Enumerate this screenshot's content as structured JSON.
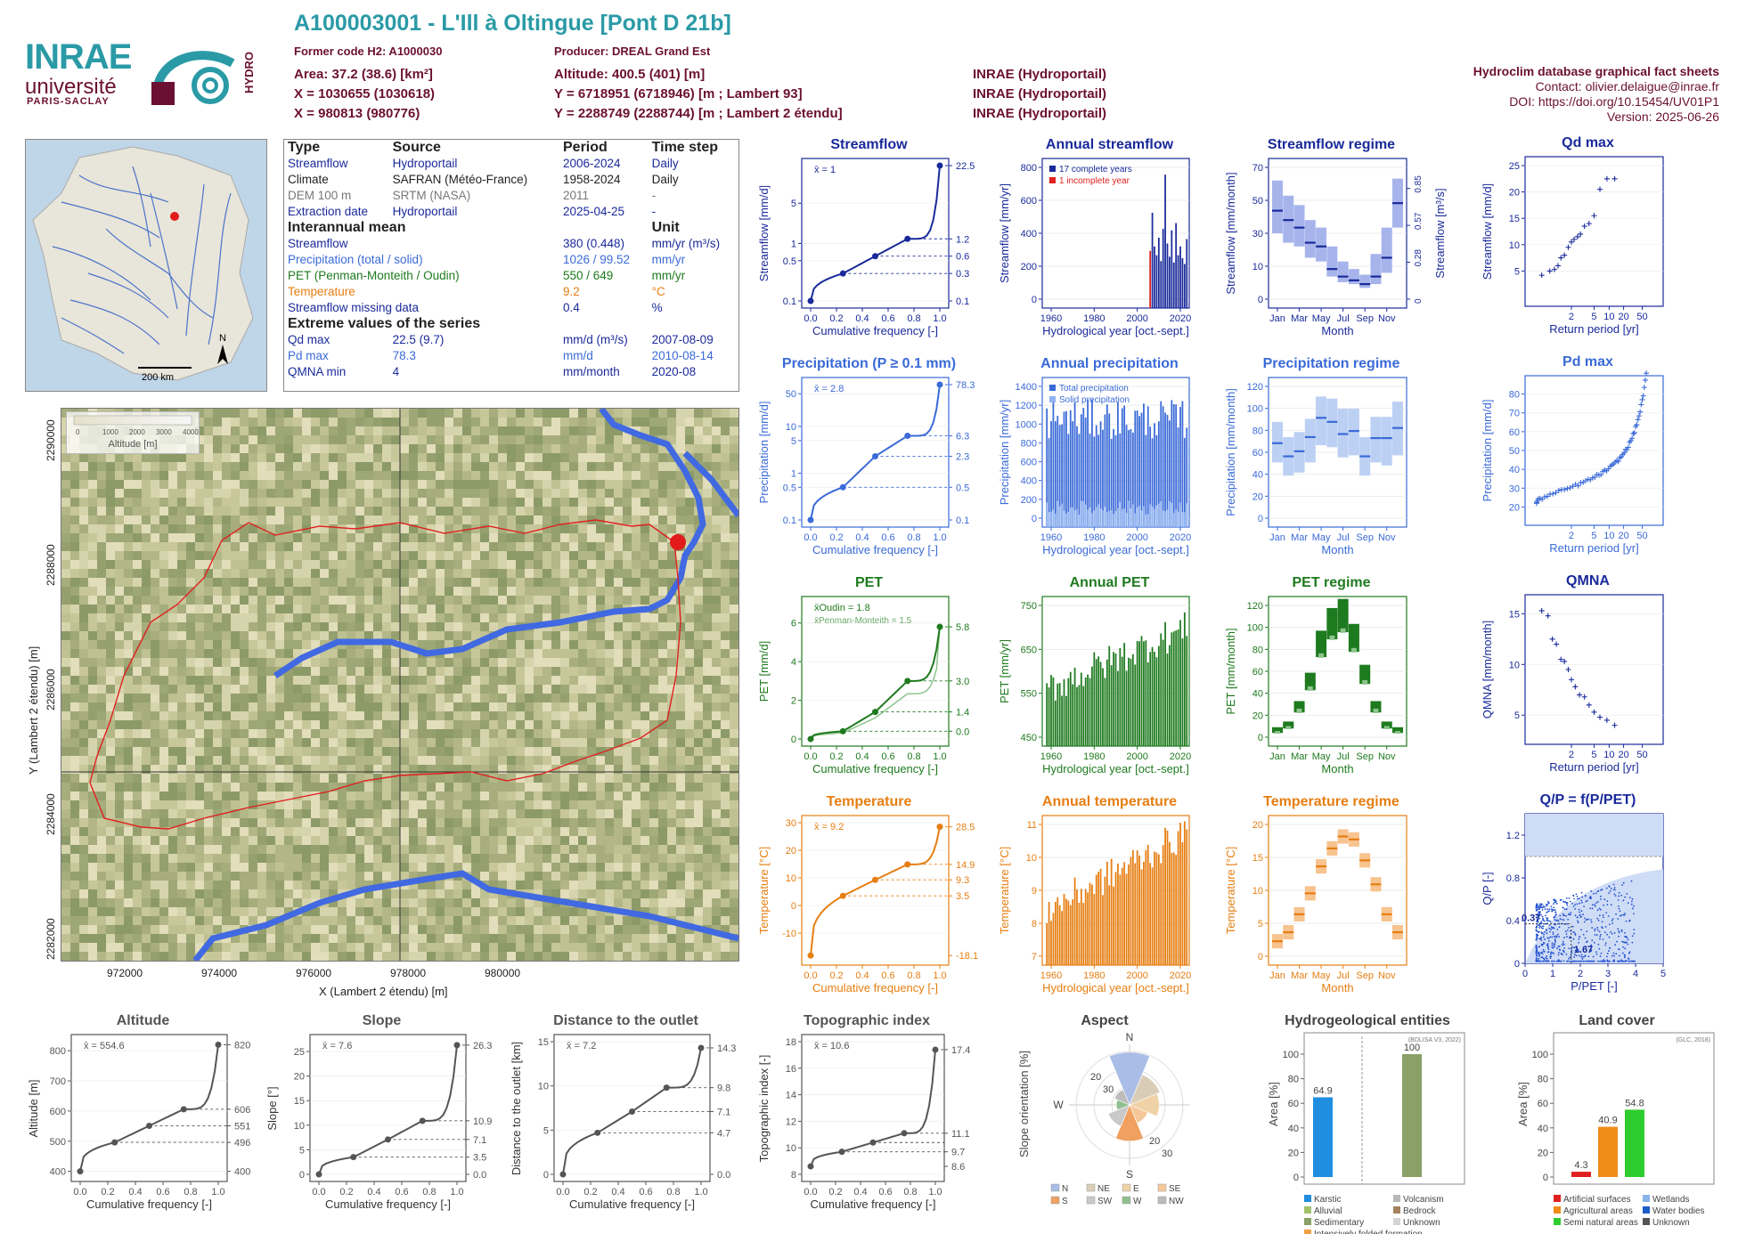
{
  "header": {
    "title": "A100003001 - L'Ill à Oltingue [Pont D 21b]",
    "former_code": "Former code H2: A1000030",
    "producer": "Producer: DREAL Grand Est",
    "area": "Area: 37.2 (38.6) [km²]",
    "altitude": "Altitude: 400.5 (401) [m]",
    "x93": "X = 1030655 (1030618)",
    "y93": "Y = 6718951 (6718946) [m ; Lambert 93]",
    "x2": "X = 980813 (980776)",
    "y2": "Y = 2288749 (2288744) [m ; Lambert 2 étendu]",
    "src1": "INRAE (Hydroportail)",
    "src2": "INRAE (Hydroportail)",
    "src3": "INRAE (Hydroportail)",
    "db": "Hydroclim database graphical fact sheets",
    "contact": "Contact: olivier.delaigue@inrae.fr",
    "doi": "DOI: https://doi.org/10.15454/UV01P1",
    "version": "Version: 2025-06-26"
  },
  "logos": {
    "inrae": "INRAE",
    "univ": "université",
    "ps": "PARIS-SACLAY",
    "hydro": "HYDRO"
  },
  "info": {
    "h_type": "Type",
    "h_source": "Source",
    "h_period": "Period",
    "h_step": "Time step",
    "rows": [
      {
        "t": "Streamflow",
        "s": "Hydroportail",
        "p": "2006-2024",
        "d": "Daily",
        "c": "#1a2a9a"
      },
      {
        "t": "Climate",
        "s": "SAFRAN (Météo-France)",
        "p": "1958-2024",
        "d": "Daily",
        "c": "#222222"
      },
      {
        "t": "DEM 100 m",
        "s": "SRTM (NASA)",
        "p": "2011",
        "d": "-",
        "c": "#777777"
      },
      {
        "t": "Extraction date",
        "s": "Hydroportail",
        "p": "2025-04-25",
        "d": "-",
        "c": "#1a2a9a"
      }
    ],
    "h_mean": "Interannual mean",
    "h_unit": "Unit",
    "means": [
      {
        "n": "Streamflow",
        "v": "380 (0.448)",
        "u": "mm/yr (m³/s)",
        "c": "#1a2a9a"
      },
      {
        "n": "Precipitation (total / solid)",
        "v": "1026 / 99.52",
        "u": "mm/yr",
        "c": "#3a6ad8"
      },
      {
        "n": "PET (Penman-Monteith / Oudin)",
        "v": "550 / 649",
        "u": "mm/yr",
        "c": "#1e7a1e"
      },
      {
        "n": "Temperature",
        "v": "9.2",
        "u": "°C",
        "c": "#e67e12"
      },
      {
        "n": "Streamflow missing data",
        "v": "0.4",
        "u": "%",
        "c": "#1a2a9a"
      }
    ],
    "h_extreme": "Extreme values of the series",
    "extremes": [
      {
        "n": "Qd max",
        "v": "22.5 (9.7)",
        "u": "mm/d (m³/s)",
        "d": "2007-08-09",
        "c": "#1a2a9a"
      },
      {
        "n": "Pd max",
        "v": "78.3",
        "u": "mm/d",
        "d": "2010-08-14",
        "c": "#3a6ad8"
      },
      {
        "n": "QMNA min",
        "v": "4",
        "u": "mm/month",
        "d": "2020-08",
        "c": "#1a2a9a"
      }
    ]
  },
  "maps": {
    "scale": "200 km",
    "north": "N",
    "legend_title": "Altitude [m]",
    "legend_ticks": [
      "0",
      "1000",
      "2000",
      "3000",
      "4000"
    ],
    "xlabel": "X (Lambert 2 étendu) [m]",
    "ylabel": "Y (Lambert 2 étendu) [m]",
    "xticks": [
      "972000",
      "974000",
      "976000",
      "978000",
      "980000"
    ],
    "yticks": [
      "2282000",
      "2284000",
      "2286000",
      "2288000",
      "2290000"
    ]
  },
  "colors": {
    "flow": "#1a2a9a",
    "precip": "#3a6ad8",
    "pet": "#1e7a1e",
    "temp": "#e67e12",
    "grey": "#555555"
  },
  "chart_data": [
    {
      "id": "streamflow",
      "type": "line",
      "title": "Streamflow",
      "xlabel": "Cumulative frequency [-]",
      "ylabel": "Streamflow [mm/d]",
      "mean_label": "x̄ = 1",
      "y_scale": "log",
      "x": [
        0,
        0.25,
        0.5,
        0.75,
        1
      ],
      "y": [
        0.1,
        0.3,
        0.6,
        1.2,
        22.5
      ],
      "right_ticks": [
        "22.5",
        "1.2",
        "0.6",
        "0.3",
        "0.1"
      ],
      "yticks": [
        "0.1",
        "0.5",
        "1",
        "5"
      ]
    },
    {
      "id": "annual_streamflow",
      "type": "bar",
      "title": "Annual streamflow",
      "xlabel": "Hydrological year [oct.-sept.]",
      "ylabel": "Streamflow [mm/yr]",
      "legend": [
        "17 complete years",
        "1 incomplete year"
      ],
      "x": [
        2006,
        2007,
        2008,
        2009,
        2010,
        2011,
        2012,
        2013,
        2014,
        2015,
        2016,
        2017,
        2018,
        2019,
        2020,
        2021,
        2022,
        2023
      ],
      "y": [
        330,
        590,
        360,
        300,
        420,
        260,
        480,
        850,
        380,
        290,
        470,
        250,
        520,
        300,
        360,
        280,
        240,
        410
      ],
      "ylim": [
        0,
        900
      ],
      "yticks": [
        "0",
        "200",
        "400",
        "600",
        "800"
      ],
      "xticks": [
        "1960",
        "1980",
        "2000",
        "2020"
      ]
    },
    {
      "id": "streamflow_regime",
      "type": "box",
      "title": "Streamflow regime",
      "xlabel": "Month",
      "ylabel": "Streamflow [mm/month]",
      "right_ylabel": "Streamflow [m³/s]",
      "categories": [
        "Jan",
        "Feb",
        "Mar",
        "Apr",
        "May",
        "Jun",
        "Jul",
        "Aug",
        "Sep",
        "Oct",
        "Nov",
        "Dec"
      ],
      "median": [
        47,
        42,
        38,
        30,
        28,
        16,
        12,
        10,
        8,
        12,
        22,
        51
      ],
      "q1": [
        35,
        30,
        28,
        22,
        20,
        12,
        9,
        8,
        6,
        8,
        14,
        38
      ],
      "q3": [
        63,
        55,
        50,
        42,
        38,
        28,
        20,
        16,
        13,
        24,
        38,
        64
      ],
      "ylim": [
        0,
        70
      ],
      "yticks": [
        "0",
        "10",
        "30",
        "50",
        "70"
      ],
      "right_ticks": [
        "0",
        "0.28",
        "0.57",
        "0.85"
      ],
      "xticks": [
        "Jan",
        "Mar",
        "May",
        "Jul",
        "Sep",
        "Nov"
      ]
    },
    {
      "id": "qd_max",
      "type": "scatter",
      "title": "Qd max",
      "xlabel": "Return period [yr]",
      "ylabel": "Streamflow [mm/d]",
      "x": [
        1.05,
        1.15,
        1.25,
        1.35,
        1.45,
        1.6,
        1.8,
        2.0,
        2.2,
        2.5,
        2.8,
        3.3,
        4,
        5,
        6.5,
        9,
        13
      ],
      "y": [
        4.2,
        5,
        5.3,
        6,
        7.5,
        8,
        9.5,
        10.5,
        11,
        11.5,
        12,
        13.5,
        14,
        15.5,
        20.5,
        22.5,
        22.5
      ],
      "ylim": [
        0,
        25
      ],
      "yticks": [
        "5",
        "10",
        "15",
        "20",
        "25"
      ],
      "xticks": [
        "2",
        "5",
        "10",
        "20",
        "50"
      ]
    },
    {
      "id": "precipitation",
      "type": "line",
      "title": "Precipitation (P ≥ 0.1 mm)",
      "xlabel": "Cumulative frequency [-]",
      "ylabel": "Precipitation [mm/d]",
      "mean_label": "x̄ = 2.8",
      "y_scale": "log",
      "x": [
        0,
        0.25,
        0.5,
        0.75,
        1
      ],
      "y": [
        0.1,
        0.5,
        2.3,
        6.3,
        78.3
      ],
      "right_ticks": [
        "78.3",
        "6.3",
        "2.3",
        "0.5",
        "0.1"
      ],
      "yticks": [
        "0.1",
        "0.5",
        "1",
        "5",
        "10",
        "50"
      ]
    },
    {
      "id": "annual_precipitation",
      "type": "bar",
      "title": "Annual precipitation",
      "xlabel": "Hydrological year [oct.-sept.]",
      "ylabel": "Precipitation [mm/yr]",
      "legend": [
        "Total precipitation",
        "Solid precipitation"
      ],
      "ylim": [
        0,
        1500
      ],
      "yticks": [
        "0",
        "200",
        "400",
        "600",
        "800",
        "1000",
        "1200",
        "1400"
      ],
      "xticks": [
        "1960",
        "1980",
        "2000",
        "2020"
      ]
    },
    {
      "id": "precipitation_regime",
      "type": "box",
      "title": "Precipitation regime",
      "xlabel": "Month",
      "ylabel": "Precipitation [mm/month]",
      "categories": [
        "Jan",
        "Feb",
        "Mar",
        "Apr",
        "May",
        "Jun",
        "Jul",
        "Aug",
        "Sep",
        "Oct",
        "Nov",
        "Dec"
      ],
      "median": [
        74,
        61,
        66,
        80,
        99,
        95,
        83,
        86,
        61,
        79,
        79,
        89
      ],
      "q1": [
        55,
        42,
        45,
        55,
        72,
        70,
        60,
        62,
        42,
        55,
        52,
        62
      ],
      "q3": [
        95,
        80,
        85,
        98,
        120,
        118,
        108,
        108,
        80,
        100,
        100,
        115
      ],
      "ylim": [
        0,
        130
      ],
      "yticks": [
        "0",
        "20",
        "40",
        "60",
        "80",
        "100",
        "120"
      ],
      "xticks": [
        "Jan",
        "Mar",
        "May",
        "Jul",
        "Sep",
        "Nov"
      ]
    },
    {
      "id": "pd_max",
      "type": "scatter",
      "title": "Pd max",
      "xlabel": "Return period [yr]",
      "ylabel": "Precipitation [mm/d]",
      "ylim": [
        15,
        85
      ],
      "yticks": [
        "20",
        "30",
        "40",
        "50",
        "60",
        "70",
        "80"
      ],
      "xticks": [
        "2",
        "5",
        "10",
        "20",
        "50"
      ]
    },
    {
      "id": "pet",
      "type": "line",
      "title": "PET",
      "xlabel": "Cumulative frequency [-]",
      "ylabel": "PET [mm/d]",
      "mean_label": "x̄Oudin = 1.8",
      "mean_label2": "x̄Penman-Monteith = 1.5",
      "x": [
        0,
        0.25,
        0.5,
        0.75,
        1
      ],
      "y": [
        0,
        0.4,
        1.4,
        3.0,
        5.8
      ],
      "right_ticks": [
        "5.8",
        "3.0",
        "1.4",
        "0.0"
      ],
      "yticks": [
        "0",
        "2",
        "4",
        "6"
      ],
      "ylim": [
        0,
        7
      ]
    },
    {
      "id": "annual_pet",
      "type": "bar",
      "title": "Annual PET",
      "xlabel": "Hydrological year [oct.-sept.]",
      "ylabel": "PET [mm/yr]",
      "ylim": [
        420,
        760
      ],
      "yticks": [
        "450",
        "550",
        "650",
        "750"
      ],
      "xticks": [
        "1960",
        "1980",
        "2000",
        "2020"
      ]
    },
    {
      "id": "pet_regime",
      "type": "box",
      "title": "PET regime",
      "xlabel": "Month",
      "ylabel": "PET [mm/month]",
      "categories": [
        "Jan",
        "Feb",
        "Mar",
        "Apr",
        "May",
        "Jun",
        "Jul",
        "Aug",
        "Sep",
        "Oct",
        "Nov",
        "Dec"
      ],
      "median": [
        7,
        12,
        30,
        55,
        92,
        112,
        120,
        98,
        62,
        30,
        12,
        7
      ],
      "ylim": [
        0,
        130
      ],
      "yticks": [
        "0",
        "20",
        "40",
        "60",
        "80",
        "100",
        "120"
      ],
      "xticks": [
        "Jan",
        "Mar",
        "May",
        "Jul",
        "Sep",
        "Nov"
      ]
    },
    {
      "id": "qmna",
      "type": "scatter",
      "title": "QMNA",
      "xlabel": "Return period [yr]",
      "ylabel": "QMNA [mm/month]",
      "x": [
        1.05,
        1.12,
        1.2,
        1.3,
        1.45,
        1.6,
        1.8,
        2.0,
        2.3,
        2.7,
        3.3,
        4,
        5,
        6.5,
        9,
        13
      ],
      "y": [
        15.3,
        14.8,
        12.5,
        12,
        10.5,
        10.3,
        9.5,
        8.5,
        7.8,
        7,
        6.8,
        6,
        5.3,
        4.8,
        4.5,
        4
      ],
      "ylim": [
        3,
        16
      ],
      "yticks": [
        "5",
        "10",
        "15"
      ],
      "xticks": [
        "2",
        "5",
        "10",
        "20",
        "50"
      ]
    },
    {
      "id": "temperature",
      "type": "line",
      "title": "Temperature",
      "xlabel": "Cumulative frequency [-]",
      "ylabel": "Temperature [°C]",
      "mean_label": "x̄ = 9.2",
      "x": [
        0,
        0.25,
        0.5,
        0.75,
        1
      ],
      "y": [
        -18.1,
        3.5,
        9.3,
        14.9,
        28.5
      ],
      "right_ticks": [
        "28.5",
        "14.9",
        "9.3",
        "3.5",
        "-18.1"
      ],
      "yticks": [
        "-10",
        "0",
        "10",
        "20",
        "30"
      ],
      "ylim": [
        -19,
        30
      ]
    },
    {
      "id": "annual_temperature",
      "type": "bar",
      "title": "Annual temperature",
      "xlabel": "Hydrological year [oct.-sept.]",
      "ylabel": "Temperature [°C]",
      "ylim": [
        6.5,
        11.5
      ],
      "yticks": [
        "7",
        "8",
        "9",
        "10",
        "11"
      ],
      "xticks": [
        "1960",
        "1980",
        "2000",
        "2020"
      ]
    },
    {
      "id": "temperature_regime",
      "type": "box",
      "title": "Temperature regime",
      "xlabel": "Month",
      "ylabel": "Temperature [°C]",
      "categories": [
        "Jan",
        "Feb",
        "Mar",
        "Apr",
        "May",
        "Jun",
        "Jul",
        "Aug",
        "Sep",
        "Oct",
        "Nov",
        "Dec"
      ],
      "median": [
        0.5,
        2,
        5,
        8.5,
        13,
        16,
        18,
        17.5,
        14,
        10,
        5,
        2
      ],
      "ylim": [
        -2,
        20
      ],
      "yticks": [
        "0",
        "5",
        "10",
        "15",
        "20"
      ],
      "xticks": [
        "Jan",
        "Mar",
        "May",
        "Jul",
        "Sep",
        "Nov"
      ]
    },
    {
      "id": "qp",
      "type": "scatter",
      "title": "Q/P = f(P/PET)",
      "xlabel": "P/PET [-]",
      "ylabel": "Q/P [-]",
      "ann1": "0.37",
      "ann2": "1.67",
      "xlim": [
        0,
        5
      ],
      "ylim": [
        0,
        1.4
      ],
      "xticks": [
        "0",
        "1",
        "2",
        "3",
        "4",
        "5"
      ],
      "yticks": [
        "0",
        "0.4",
        "0.8",
        "1.2"
      ]
    },
    {
      "id": "altitude",
      "type": "line",
      "title": "Altitude",
      "xlabel": "Cumulative frequency [-]",
      "ylabel": "Altitude [m]",
      "mean_label": "x̄ = 554.6",
      "x": [
        0,
        0.25,
        0.5,
        0.75,
        1
      ],
      "y": [
        400,
        496,
        551,
        606,
        820
      ],
      "right_ticks": [
        "820",
        "606",
        "551",
        "496",
        "400"
      ],
      "ylim": [
        390,
        830
      ],
      "yticks": [
        "400",
        "500",
        "600",
        "700",
        "800"
      ]
    },
    {
      "id": "slope",
      "type": "line",
      "title": "Slope",
      "xlabel": "Cumulative frequency [-]",
      "ylabel": "Slope [°]",
      "mean_label": "x̄ = 7.6",
      "x": [
        0,
        0.25,
        0.5,
        0.75,
        1
      ],
      "y": [
        0,
        3.5,
        7.1,
        10.9,
        26.3
      ],
      "right_ticks": [
        "26.3",
        "10.9",
        "7.1",
        "3.5",
        "0.0"
      ],
      "ylim": [
        0,
        27
      ],
      "yticks": [
        "0",
        "5",
        "10",
        "15",
        "20",
        "25"
      ]
    },
    {
      "id": "distance",
      "type": "line",
      "title": "Distance to the outlet",
      "xlabel": "Cumulative frequency [-]",
      "ylabel": "Distance to the outlet [km]",
      "mean_label": "x̄ = 7.2",
      "x": [
        0,
        0.25,
        0.5,
        0.75,
        1
      ],
      "y": [
        0,
        4.7,
        7.1,
        9.8,
        14.3
      ],
      "right_ticks": [
        "14.3",
        "9.8",
        "7.1",
        "4.7",
        "0.0"
      ],
      "ylim": [
        0,
        15
      ],
      "yticks": [
        "0",
        "5",
        "10",
        "15"
      ]
    },
    {
      "id": "topo",
      "type": "line",
      "title": "Topographic index",
      "xlabel": "Cumulative frequency [-]",
      "ylabel": "Topographic index [-]",
      "mean_label": "x̄ = 10.6",
      "x": [
        0,
        0.25,
        0.5,
        0.75,
        1
      ],
      "y": [
        8.6,
        9.7,
        10.4,
        11.1,
        17.4
      ],
      "right_ticks": [
        "17.4",
        "11.1",
        "9.7",
        "8.6"
      ],
      "ylim": [
        8,
        18
      ],
      "yticks": [
        "8",
        "10",
        "12",
        "14",
        "16",
        "18"
      ]
    },
    {
      "id": "aspect",
      "type": "pie",
      "title": "Aspect",
      "ylabel": "Slope orientation [%]",
      "directions": [
        "N",
        "NE",
        "E",
        "SE",
        "S",
        "SW",
        "W",
        "NW"
      ],
      "values": [
        32,
        20,
        18,
        12,
        22,
        14,
        8,
        10
      ],
      "ring_labels": [
        "20",
        "30",
        "20",
        "30"
      ],
      "legend": [
        "N",
        "NE",
        "E",
        "SE",
        "S",
        "SW",
        "W",
        "NW"
      ],
      "dir_colors": [
        "#a9bde6",
        "#d9cdb8",
        "#f0d2a8",
        "#f5c89a",
        "#f0a060",
        "#c9c9c9",
        "#8fbf8f",
        "#bcbcbc"
      ]
    },
    {
      "id": "hydrogeo",
      "type": "bar",
      "title": "Hydrogeological entities",
      "source": "(BDLISA V3, 2022)",
      "ylabel": "Area [%]",
      "categories": [
        "Karstic",
        "Sedimentary"
      ],
      "values": [
        64.9,
        100
      ],
      "value_labels": [
        "64.9",
        "100"
      ],
      "legend": [
        "Karstic",
        "Volcanism",
        "Alluvial",
        "Bedrock",
        "Sedimentary",
        "Unknown",
        "Intensively folded formation"
      ],
      "legend_colors": [
        "#1f8ee0",
        "#b7b7b7",
        "#a3c26a",
        "#a5835c",
        "#8aa066",
        "#d5d5d5",
        "#f0a040"
      ],
      "ylim": [
        0,
        100
      ],
      "yticks": [
        "0",
        "20",
        "40",
        "60",
        "80",
        "100"
      ]
    },
    {
      "id": "landcover",
      "type": "bar",
      "title": "Land cover",
      "source": "(GLC, 2018)",
      "ylabel": "Area [%]",
      "categories": [
        "Artificial surfaces",
        "Agricultural areas",
        "Semi natural areas"
      ],
      "values": [
        4.3,
        40.9,
        54.8
      ],
      "value_labels": [
        "4.3",
        "40.9",
        "54.8"
      ],
      "legend": [
        "Artificial surfaces",
        "Wetlands",
        "Agricultural areas",
        "Water bodies",
        "Semi natural areas",
        "Unknown"
      ],
      "legend_colors": [
        "#e02020",
        "#8ab4e8",
        "#f08c1a",
        "#1f5ec8",
        "#2ecc2e",
        "#555555"
      ],
      "ylim": [
        0,
        100
      ],
      "yticks": [
        "0",
        "20",
        "40",
        "60",
        "80",
        "100"
      ]
    }
  ]
}
